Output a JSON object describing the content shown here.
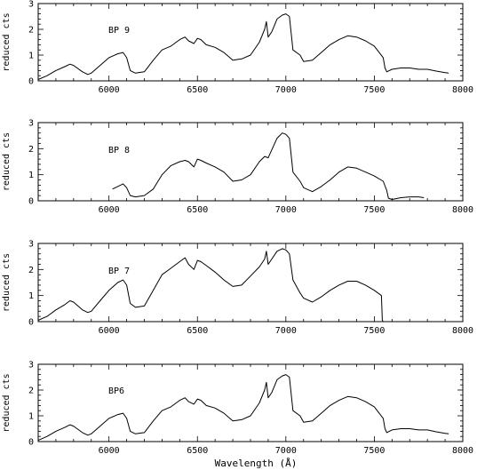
{
  "figure": {
    "xlabel": "Wavelength (Å)",
    "ylabel": "reduced cts"
  },
  "chart_data": [
    {
      "type": "line",
      "label": "BP 9",
      "ylabel": "reduced cts",
      "xlim": [
        5600,
        8000
      ],
      "ylim": [
        0,
        3
      ],
      "xticks": [
        6000,
        6500,
        7000,
        7500,
        8000
      ],
      "yticks": [
        0,
        1,
        2,
        3
      ],
      "x": [
        5600,
        5650,
        5700,
        5750,
        5780,
        5800,
        5850,
        5880,
        5900,
        5950,
        6000,
        6050,
        6080,
        6100,
        6120,
        6150,
        6200,
        6250,
        6300,
        6350,
        6400,
        6430,
        6450,
        6480,
        6500,
        6520,
        6550,
        6600,
        6650,
        6700,
        6750,
        6800,
        6850,
        6880,
        6890,
        6900,
        6920,
        6950,
        6980,
        7000,
        7020,
        7040,
        7080,
        7100,
        7150,
        7200,
        7250,
        7300,
        7350,
        7400,
        7450,
        7500,
        7550,
        7560,
        7570,
        7600,
        7650,
        7700,
        7750,
        7800,
        7850,
        7900,
        7920
      ],
      "y": [
        0.05,
        0.2,
        0.4,
        0.55,
        0.65,
        0.6,
        0.35,
        0.25,
        0.3,
        0.6,
        0.9,
        1.05,
        1.1,
        0.9,
        0.4,
        0.3,
        0.35,
        0.8,
        1.2,
        1.35,
        1.6,
        1.7,
        1.55,
        1.45,
        1.65,
        1.6,
        1.4,
        1.3,
        1.1,
        0.8,
        0.85,
        1.0,
        1.5,
        2.0,
        2.3,
        1.7,
        1.9,
        2.4,
        2.55,
        2.6,
        2.5,
        1.2,
        1.0,
        0.75,
        0.8,
        1.1,
        1.4,
        1.6,
        1.75,
        1.7,
        1.55,
        1.35,
        0.9,
        0.5,
        0.35,
        0.45,
        0.5,
        0.5,
        0.45,
        0.45,
        0.38,
        0.32,
        0.3
      ]
    },
    {
      "type": "line",
      "label": "BP 8",
      "ylabel": "reduced cts",
      "xlim": [
        5600,
        8000
      ],
      "ylim": [
        0,
        3
      ],
      "xticks": [
        6000,
        6500,
        7000,
        7500,
        8000
      ],
      "yticks": [
        0,
        1,
        2,
        3
      ],
      "x": [
        6020,
        6050,
        6080,
        6100,
        6120,
        6150,
        6200,
        6250,
        6300,
        6350,
        6400,
        6430,
        6450,
        6480,
        6500,
        6520,
        6550,
        6600,
        6650,
        6700,
        6750,
        6800,
        6850,
        6880,
        6900,
        6950,
        6980,
        7000,
        7020,
        7040,
        7080,
        7100,
        7150,
        7200,
        7250,
        7300,
        7350,
        7400,
        7450,
        7500,
        7550,
        7570,
        7580,
        7600,
        7650,
        7700,
        7750,
        7780
      ],
      "y": [
        0.45,
        0.55,
        0.65,
        0.5,
        0.2,
        0.15,
        0.2,
        0.45,
        1.0,
        1.35,
        1.5,
        1.55,
        1.5,
        1.3,
        1.6,
        1.55,
        1.45,
        1.3,
        1.1,
        0.75,
        0.8,
        1.0,
        1.5,
        1.7,
        1.65,
        2.4,
        2.6,
        2.55,
        2.4,
        1.1,
        0.75,
        0.5,
        0.35,
        0.55,
        0.8,
        1.1,
        1.3,
        1.25,
        1.1,
        0.95,
        0.75,
        0.4,
        0.1,
        0.05,
        0.12,
        0.15,
        0.15,
        0.12
      ]
    },
    {
      "type": "line",
      "label": "BP 7",
      "ylabel": "reduced cts",
      "xlim": [
        5600,
        8000
      ],
      "ylim": [
        0,
        3
      ],
      "xticks": [
        6000,
        6500,
        7000,
        7500,
        8000
      ],
      "yticks": [
        0,
        1,
        2,
        3
      ],
      "x": [
        5600,
        5650,
        5700,
        5750,
        5780,
        5800,
        5850,
        5880,
        5900,
        5950,
        6000,
        6050,
        6080,
        6100,
        6120,
        6150,
        6200,
        6250,
        6300,
        6350,
        6400,
        6430,
        6450,
        6480,
        6500,
        6520,
        6550,
        6600,
        6650,
        6700,
        6750,
        6800,
        6850,
        6880,
        6890,
        6900,
        6920,
        6950,
        6980,
        7000,
        7020,
        7040,
        7080,
        7100,
        7150,
        7200,
        7250,
        7300,
        7350,
        7400,
        7450,
        7500,
        7530,
        7540,
        7545,
        7550
      ],
      "y": [
        0.05,
        0.2,
        0.45,
        0.65,
        0.8,
        0.75,
        0.45,
        0.35,
        0.4,
        0.8,
        1.2,
        1.5,
        1.6,
        1.4,
        0.7,
        0.55,
        0.6,
        1.2,
        1.8,
        2.05,
        2.3,
        2.45,
        2.2,
        2.0,
        2.35,
        2.3,
        2.15,
        1.9,
        1.6,
        1.35,
        1.4,
        1.75,
        2.1,
        2.4,
        2.7,
        2.2,
        2.4,
        2.7,
        2.8,
        2.75,
        2.6,
        1.6,
        1.1,
        0.9,
        0.75,
        0.95,
        1.2,
        1.4,
        1.55,
        1.55,
        1.4,
        1.2,
        1.05,
        1.0,
        0.05,
        0.0
      ]
    },
    {
      "type": "line",
      "label": "BP6",
      "ylabel": "reduced cts",
      "xlim": [
        5600,
        8000
      ],
      "ylim": [
        0,
        3
      ],
      "xticks": [
        6000,
        6500,
        7000,
        7500,
        8000
      ],
      "yticks": [
        0,
        1,
        2,
        3
      ],
      "x": [
        5600,
        5650,
        5700,
        5750,
        5780,
        5800,
        5850,
        5880,
        5900,
        5950,
        6000,
        6050,
        6080,
        6100,
        6120,
        6150,
        6200,
        6250,
        6300,
        6350,
        6400,
        6430,
        6450,
        6480,
        6500,
        6520,
        6550,
        6600,
        6650,
        6700,
        6750,
        6800,
        6850,
        6880,
        6890,
        6900,
        6920,
        6950,
        6980,
        7000,
        7020,
        7040,
        7080,
        7100,
        7150,
        7200,
        7250,
        7300,
        7350,
        7400,
        7450,
        7500,
        7550,
        7560,
        7570,
        7600,
        7650,
        7700,
        7750,
        7800,
        7850,
        7900,
        7920
      ],
      "y": [
        0.05,
        0.2,
        0.4,
        0.55,
        0.65,
        0.6,
        0.35,
        0.25,
        0.3,
        0.6,
        0.9,
        1.05,
        1.1,
        0.9,
        0.4,
        0.3,
        0.35,
        0.8,
        1.2,
        1.35,
        1.6,
        1.7,
        1.55,
        1.45,
        1.65,
        1.6,
        1.4,
        1.3,
        1.1,
        0.8,
        0.85,
        1.0,
        1.5,
        2.0,
        2.3,
        1.7,
        1.9,
        2.4,
        2.55,
        2.6,
        2.5,
        1.2,
        1.0,
        0.75,
        0.8,
        1.1,
        1.4,
        1.6,
        1.75,
        1.7,
        1.55,
        1.35,
        0.9,
        0.5,
        0.35,
        0.45,
        0.5,
        0.5,
        0.45,
        0.45,
        0.38,
        0.32,
        0.3
      ]
    }
  ]
}
